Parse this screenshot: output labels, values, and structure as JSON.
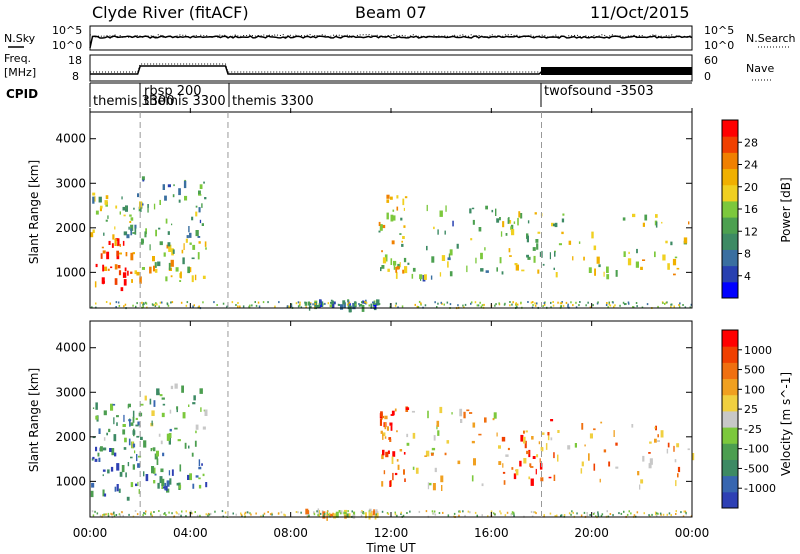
{
  "header": {
    "station": "Clyde River (fitACF)",
    "beam": "Beam 07",
    "date": "11/Oct/2015"
  },
  "panels": {
    "nsky_label": "N.Sky",
    "nsearch_label": "N.Search",
    "freq_label_1": "Freq.",
    "freq_label_2": "[MHz]",
    "nave_label": "Nave",
    "cpid_label": "CPID",
    "nsky_ticks": [
      "10^5",
      "10^0"
    ],
    "nsearch_ticks": [
      "10^5",
      "10^0"
    ],
    "freq_ticks": [
      "18",
      "8"
    ],
    "nave_ticks": [
      "60",
      "0"
    ]
  },
  "cpid_segments": [
    {
      "label": "themis 3300",
      "start_h": 0.0,
      "end_h": 2.0
    },
    {
      "label": "rbsp 200",
      "start_h": 2.0,
      "end_h": 5.5
    },
    {
      "label": "themis 3300",
      "start_h": 2.0,
      "end_h": 5.5,
      "sub": true
    },
    {
      "label": "themis 3300",
      "start_h": 5.5,
      "end_h": 18.0
    },
    {
      "label": "twofsound -3503",
      "start_h": 18.0,
      "end_h": 24.0
    }
  ],
  "chart_data": {
    "type": "heatmap",
    "xlabel": "Time UT",
    "ylabel": "Slant Range [km]",
    "x_range_h": [
      0,
      24
    ],
    "xticks": [
      "00:00",
      "04:00",
      "08:00",
      "12:00",
      "16:00",
      "20:00",
      "00:00"
    ],
    "yticks": [
      1000,
      2000,
      3000,
      4000
    ],
    "ylim": [
      200,
      4600
    ],
    "power": {
      "label": "Power [dB]",
      "ticks": [
        "28",
        "24",
        "20",
        "16",
        "12",
        "8",
        "4"
      ],
      "colors": [
        "#0000ff",
        "#2840b0",
        "#3a6fa0",
        "#3d8a64",
        "#4ca050",
        "#7cc83c",
        "#f0d020",
        "#f0b000",
        "#f08000",
        "#f04000",
        "#ff0000"
      ]
    },
    "velocity": {
      "label": "Velocity [m s^-1]",
      "ticks": [
        "1000",
        "500",
        "100",
        "25",
        "-25",
        "-100",
        "-500",
        "-1000"
      ],
      "colors": [
        "#2e40b4",
        "#3766b0",
        "#3d8a64",
        "#4c9e50",
        "#7cc83c",
        "#c8c8c8",
        "#f0d040",
        "#f0a020",
        "#f07010",
        "#f04000",
        "#ff0000"
      ]
    },
    "regions": [
      {
        "t0": 0.0,
        "t1": 2.0,
        "r0": 650,
        "r1": 1800,
        "p": 0.85,
        "v": 0.2
      },
      {
        "t0": 0.0,
        "t1": 2.0,
        "r0": 1800,
        "r1": 2800,
        "p": 0.45,
        "v": 0.35
      },
      {
        "t0": 2.0,
        "t1": 4.6,
        "r0": 800,
        "r1": 1800,
        "p": 0.55,
        "v": 0.25
      },
      {
        "t0": 2.0,
        "t1": 4.6,
        "r0": 1800,
        "r1": 3200,
        "p": 0.35,
        "v": 0.35
      },
      {
        "t0": 8.5,
        "t1": 11.5,
        "r0": 250,
        "r1": 400,
        "p": 0.3,
        "v": 0.55
      },
      {
        "t0": 11.5,
        "t1": 12.6,
        "r0": 1000,
        "r1": 2800,
        "p": 0.55,
        "v": 0.85
      },
      {
        "t0": 12.6,
        "t1": 16.4,
        "r0": 900,
        "r1": 2700,
        "p": 0.35,
        "v": 0.6
      },
      {
        "t0": 16.4,
        "t1": 18.6,
        "r0": 1000,
        "r1": 2400,
        "p": 0.5,
        "v": 0.75
      },
      {
        "t0": 18.6,
        "t1": 24.0,
        "r0": 900,
        "r1": 2400,
        "p": 0.55,
        "v": 0.65
      }
    ]
  }
}
